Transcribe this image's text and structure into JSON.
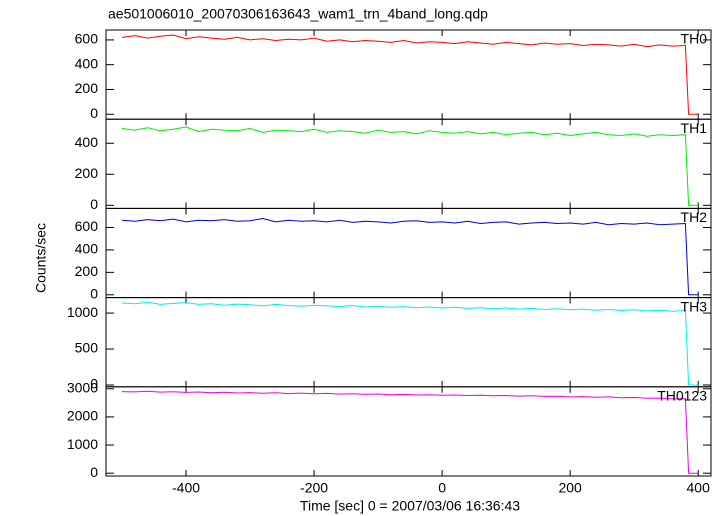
{
  "chart_data": {
    "type": "line",
    "title": "ae501006010_20070306163643_wam1_trn_4band_long.qdp",
    "xlabel": "Time [sec] 0 = 2007/03/06 16:36:43",
    "ylabel": "Counts/sec",
    "xlim": [
      -525,
      420
    ],
    "xticks": [
      -400,
      -200,
      0,
      200,
      400
    ],
    "x": [
      -500,
      -480,
      -460,
      -440,
      -420,
      -400,
      -380,
      -360,
      -340,
      -320,
      -300,
      -280,
      -260,
      -240,
      -220,
      -200,
      -180,
      -160,
      -140,
      -120,
      -100,
      -80,
      -60,
      -40,
      -20,
      0,
      20,
      40,
      60,
      80,
      100,
      120,
      140,
      160,
      180,
      200,
      220,
      240,
      260,
      280,
      300,
      320,
      340,
      360,
      380,
      385,
      400
    ],
    "series": [
      {
        "name": "TH0",
        "color": "#ff0000",
        "ylim": [
          -40,
          680
        ],
        "yticks": [
          0,
          200,
          400,
          600
        ],
        "values": [
          620,
          635,
          615,
          630,
          640,
          610,
          625,
          615,
          605,
          620,
          600,
          610,
          595,
          605,
          600,
          615,
          590,
          600,
          585,
          595,
          590,
          580,
          595,
          575,
          585,
          580,
          570,
          585,
          575,
          565,
          580,
          570,
          560,
          575,
          565,
          570,
          555,
          565,
          560,
          550,
          565,
          545,
          560,
          550,
          555,
          0,
          0
        ]
      },
      {
        "name": "TH1",
        "color": "#00ee00",
        "ylim": [
          -20,
          555
        ],
        "yticks": [
          0,
          200,
          400
        ],
        "values": [
          495,
          485,
          500,
          480,
          490,
          505,
          475,
          490,
          485,
          480,
          495,
          470,
          485,
          480,
          475,
          490,
          470,
          480,
          475,
          465,
          485,
          470,
          475,
          460,
          480,
          470,
          465,
          475,
          460,
          470,
          455,
          465,
          470,
          455,
          465,
          450,
          460,
          470,
          455,
          450,
          460,
          445,
          455,
          450,
          455,
          0,
          0
        ]
      },
      {
        "name": "TH2",
        "color": "#0000dd",
        "ylim": [
          -25,
          770
        ],
        "yticks": [
          0,
          200,
          400,
          600
        ],
        "values": [
          665,
          655,
          670,
          660,
          675,
          650,
          665,
          660,
          670,
          655,
          660,
          680,
          650,
          665,
          655,
          660,
          650,
          665,
          645,
          655,
          650,
          640,
          655,
          660,
          645,
          650,
          640,
          655,
          635,
          645,
          650,
          630,
          640,
          645,
          635,
          640,
          630,
          645,
          625,
          635,
          630,
          640,
          625,
          630,
          635,
          0,
          0
        ]
      },
      {
        "name": "TH3",
        "color": "#00eeee",
        "ylim": [
          -25,
          1215
        ],
        "yticks": [
          0,
          500,
          1000
        ],
        "values": [
          1140,
          1130,
          1150,
          1120,
          1135,
          1145,
          1120,
          1130,
          1110,
          1125,
          1115,
          1100,
          1120,
          1105,
          1095,
          1110,
          1100,
          1090,
          1105,
          1085,
          1095,
          1080,
          1090,
          1075,
          1085,
          1070,
          1080,
          1065,
          1075,
          1060,
          1070,
          1055,
          1065,
          1050,
          1060,
          1045,
          1055,
          1040,
          1050,
          1035,
          1045,
          1030,
          1040,
          1025,
          1035,
          0,
          0
        ]
      },
      {
        "name": "TH0123",
        "color": "#ee00ee",
        "ylim": [
          -100,
          3070
        ],
        "yticks": [
          0,
          1000,
          2000,
          3000
        ],
        "values": [
          2900,
          2890,
          2910,
          2880,
          2895,
          2870,
          2885,
          2860,
          2875,
          2850,
          2865,
          2840,
          2855,
          2830,
          2845,
          2820,
          2835,
          2810,
          2825,
          2800,
          2815,
          2790,
          2800,
          2780,
          2790,
          2770,
          2780,
          2760,
          2770,
          2750,
          2760,
          2740,
          2750,
          2730,
          2735,
          2710,
          2720,
          2700,
          2710,
          2680,
          2690,
          2660,
          2670,
          2640,
          2650,
          0,
          0
        ]
      }
    ]
  }
}
